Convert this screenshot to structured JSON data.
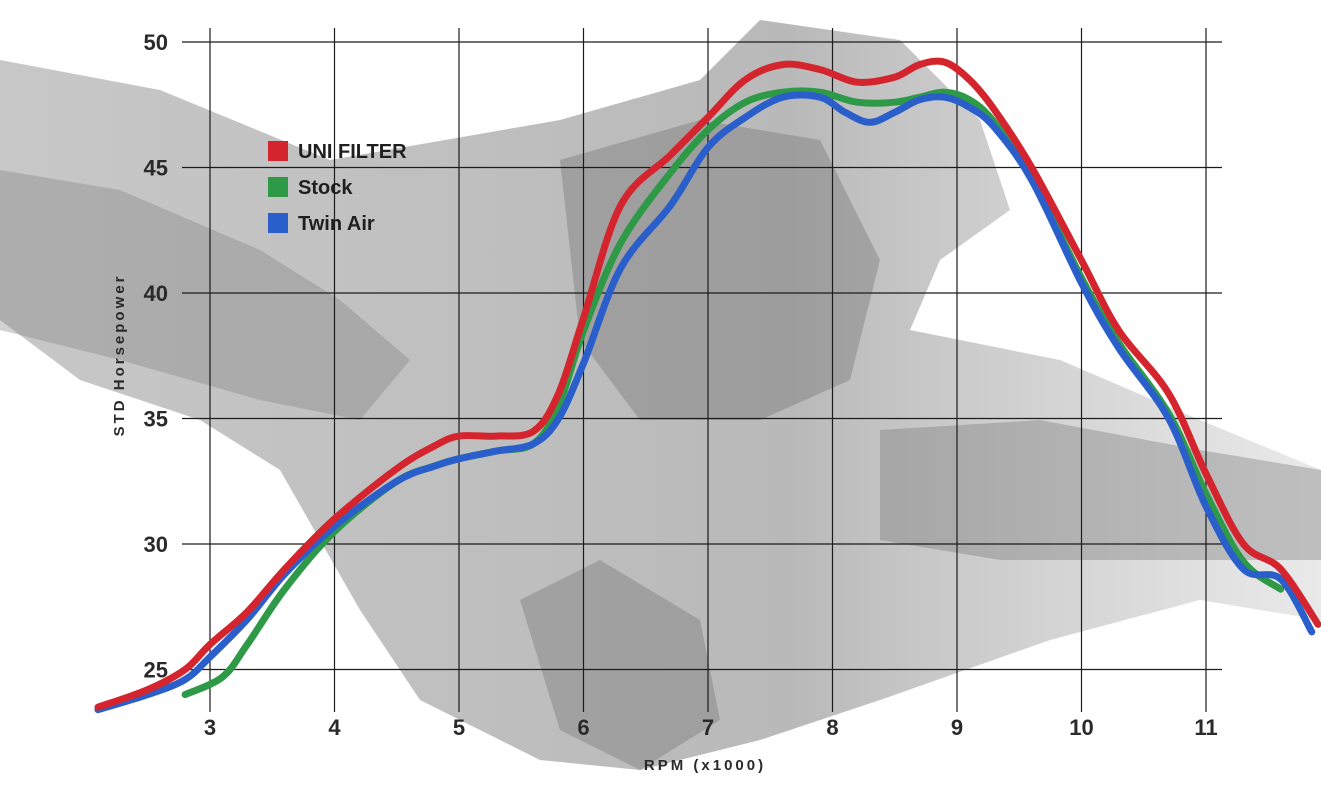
{
  "chart_data": {
    "type": "line",
    "title": "",
    "xlabel": "RPM (x1000)",
    "ylabel": "STD Horsepower",
    "xlim": [
      2.0,
      11.9
    ],
    "ylim": [
      23.5,
      50.8
    ],
    "x_ticks": [
      3,
      4,
      5,
      6,
      7,
      8,
      9,
      10,
      11
    ],
    "y_ticks": [
      25,
      30,
      35,
      40,
      45,
      50
    ],
    "grid": true,
    "legend_position": "top-left",
    "series": [
      {
        "name": "UNI FILTER",
        "color": "#d4252e",
        "x": [
          2.1,
          2.5,
          2.8,
          3.0,
          3.3,
          3.6,
          4.0,
          4.5,
          4.8,
          5.0,
          5.3,
          5.6,
          5.8,
          6.0,
          6.3,
          6.7,
          7.0,
          7.3,
          7.6,
          7.9,
          8.2,
          8.5,
          8.7,
          8.9,
          9.1,
          9.3,
          9.6,
          10.0,
          10.3,
          10.7,
          11.0,
          11.3,
          11.6,
          11.9
        ],
        "y": [
          23.5,
          24.2,
          25.0,
          26.0,
          27.3,
          29.0,
          31.0,
          33.0,
          33.9,
          34.3,
          34.3,
          34.5,
          36.0,
          39.0,
          43.5,
          45.5,
          47.0,
          48.5,
          49.1,
          48.9,
          48.4,
          48.6,
          49.1,
          49.2,
          48.5,
          47.3,
          45.0,
          41.3,
          38.5,
          36.0,
          32.8,
          30.0,
          29.0,
          26.8
        ]
      },
      {
        "name": "Stock",
        "color": "#2e9a48",
        "x": [
          2.8,
          3.1,
          3.3,
          3.6,
          4.0,
          4.5,
          4.8,
          5.0,
          5.3,
          5.6,
          5.8,
          6.0,
          6.3,
          6.7,
          7.0,
          7.3,
          7.6,
          7.9,
          8.2,
          8.5,
          8.7,
          8.9,
          9.1,
          9.3,
          9.6,
          10.0,
          10.3,
          10.7,
          11.0,
          11.3,
          11.6
        ],
        "y": [
          24.0,
          24.7,
          26.0,
          28.2,
          30.5,
          32.5,
          33.1,
          33.4,
          33.7,
          34.0,
          35.5,
          38.5,
          42.0,
          44.8,
          46.5,
          47.6,
          48.0,
          48.0,
          47.6,
          47.6,
          47.8,
          48.0,
          47.7,
          46.8,
          44.6,
          40.6,
          38.0,
          35.2,
          32.0,
          29.3,
          28.2
        ]
      },
      {
        "name": "Twin Air",
        "color": "#2a5fcb",
        "x": [
          2.1,
          2.5,
          2.8,
          3.0,
          3.3,
          3.6,
          4.0,
          4.5,
          4.8,
          5.0,
          5.3,
          5.6,
          5.8,
          6.0,
          6.3,
          6.7,
          7.0,
          7.3,
          7.6,
          7.9,
          8.1,
          8.3,
          8.5,
          8.7,
          8.9,
          9.1,
          9.3,
          9.6,
          10.0,
          10.3,
          10.7,
          11.0,
          11.3,
          11.6,
          11.85
        ],
        "y": [
          23.4,
          24.0,
          24.6,
          25.5,
          27.0,
          28.8,
          30.7,
          32.5,
          33.1,
          33.4,
          33.7,
          34.0,
          35.0,
          37.2,
          41.0,
          43.5,
          45.8,
          47.0,
          47.8,
          47.8,
          47.2,
          46.8,
          47.2,
          47.7,
          47.8,
          47.4,
          46.6,
          44.5,
          40.4,
          37.8,
          35.0,
          31.5,
          29.0,
          28.6,
          26.5
        ]
      }
    ]
  }
}
